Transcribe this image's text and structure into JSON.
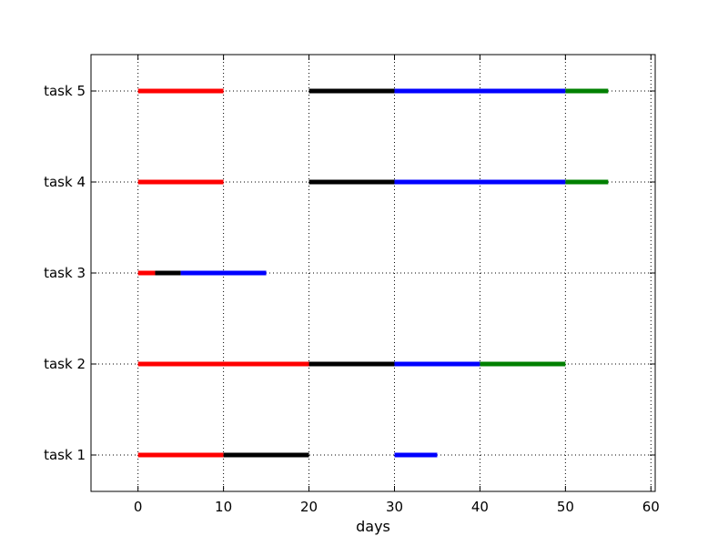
{
  "chart_data": {
    "type": "gantt",
    "title": "",
    "xlabel": "days",
    "ylabel": "",
    "xlim": [
      -5.5,
      60.5
    ],
    "xticks": [
      0,
      10,
      20,
      30,
      40,
      50,
      60
    ],
    "xtick_labels": [
      "0",
      "10",
      "20",
      "30",
      "40",
      "50",
      "60"
    ],
    "categories": [
      "task 1",
      "task 2",
      "task 3",
      "task 4",
      "task 5"
    ],
    "grid": true,
    "colors": {
      "red": "#ff0000",
      "black": "#000000",
      "blue": "#0000ff",
      "green": "#008000"
    },
    "tasks": [
      {
        "label": "task 1",
        "segments": [
          {
            "start": 0,
            "end": 10,
            "color": "red"
          },
          {
            "start": 10,
            "end": 20,
            "color": "black"
          },
          {
            "start": 30,
            "end": 35,
            "color": "blue"
          }
        ]
      },
      {
        "label": "task 2",
        "segments": [
          {
            "start": 0,
            "end": 20,
            "color": "red"
          },
          {
            "start": 20,
            "end": 30,
            "color": "black"
          },
          {
            "start": 30,
            "end": 40,
            "color": "blue"
          },
          {
            "start": 40,
            "end": 50,
            "color": "green"
          }
        ]
      },
      {
        "label": "task 3",
        "segments": [
          {
            "start": 0,
            "end": 2,
            "color": "red"
          },
          {
            "start": 2,
            "end": 5,
            "color": "black"
          },
          {
            "start": 5,
            "end": 15,
            "color": "blue"
          }
        ]
      },
      {
        "label": "task 4",
        "segments": [
          {
            "start": 0,
            "end": 10,
            "color": "red"
          },
          {
            "start": 20,
            "end": 30,
            "color": "black"
          },
          {
            "start": 30,
            "end": 50,
            "color": "blue"
          },
          {
            "start": 50,
            "end": 55,
            "color": "green"
          }
        ]
      },
      {
        "label": "task 5",
        "segments": [
          {
            "start": 0,
            "end": 10,
            "color": "red"
          },
          {
            "start": 20,
            "end": 30,
            "color": "black"
          },
          {
            "start": 30,
            "end": 50,
            "color": "blue"
          },
          {
            "start": 50,
            "end": 55,
            "color": "green"
          }
        ]
      }
    ]
  }
}
